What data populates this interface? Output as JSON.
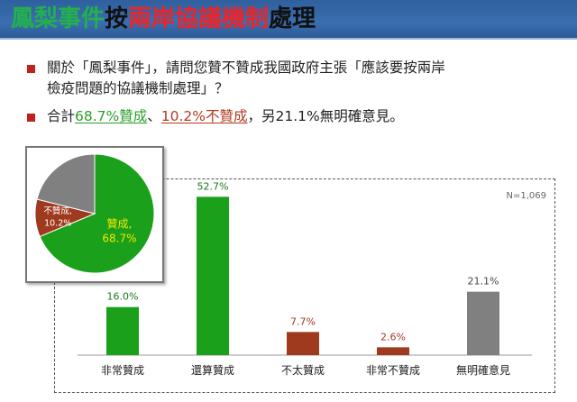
{
  "title": {
    "part1": "鳳梨事件",
    "part2": "按",
    "part3": "兩岸協議機制",
    "part4": "處理"
  },
  "bullets": {
    "question_line1": "關於「鳳梨事件」，請問您贊不贊成我國政府主張「應該要按兩岸",
    "question_line2": "檢疫問題的協議機制處理」？",
    "summary_prefix": "合計",
    "summary_agree": "68.7%贊成",
    "summary_sep": "、",
    "summary_disagree": "10.2%不贊成",
    "summary_suffix": "，另21.1%無明確意見。"
  },
  "colors": {
    "green": "#1aa01a",
    "red": "#a03a1e",
    "gray": "#808080",
    "bullet": "#c0211f"
  },
  "chart_data": [
    {
      "type": "bar",
      "note": "N=1,069",
      "categories": [
        "非常贊成",
        "還算贊成",
        "不太贊成",
        "非常不贊成",
        "無明確意見"
      ],
      "values": [
        16.0,
        52.7,
        7.7,
        2.6,
        21.1
      ],
      "value_labels": [
        "16.0%",
        "52.7%",
        "7.7%",
        "2.6%",
        "21.1%"
      ],
      "bar_colors": [
        "#1aa01a",
        "#1aa01a",
        "#a03a1e",
        "#a03a1e",
        "#808080"
      ],
      "label_colors": [
        "#1a7a1a",
        "#1a7a1a",
        "#a03a1e",
        "#a03a1e",
        "#444444"
      ],
      "ylim": [
        0,
        60
      ],
      "grid": false
    },
    {
      "type": "pie",
      "slices": [
        {
          "name": "贊成",
          "value": 68.7,
          "label": "68.7%",
          "color": "#1aa01a",
          "text_color": "#f2e600"
        },
        {
          "name": "不贊成",
          "value": 10.2,
          "label": "10.2%",
          "color": "#a03a1e",
          "text_color": "#ffffff"
        },
        {
          "name": "",
          "value": 21.1,
          "label": "",
          "color": "#808080",
          "text_color": "#ffffff"
        }
      ]
    }
  ]
}
